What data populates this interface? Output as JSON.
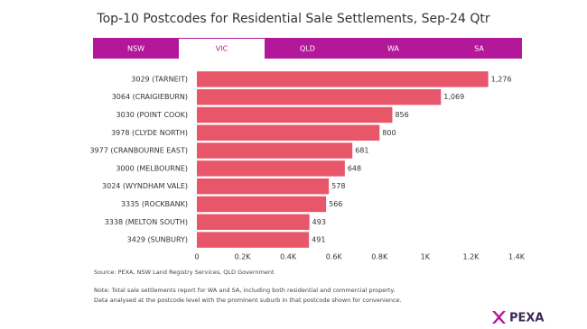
{
  "tabs": {
    "items": [
      "NSW",
      "VIC",
      "QLD",
      "WA",
      "SA"
    ],
    "active": 1
  },
  "chart_data": {
    "type": "bar",
    "orientation": "horizontal",
    "title": "Top-10 Postcodes for Residential Sale Settlements, Sep-24 Qtr",
    "categories": [
      "3029 (TARNEIT)",
      "3064 (CRAIGIEBURN)",
      "3030 (POINT COOK)",
      "3978 (CLYDE NORTH)",
      "3977 (CRANBOURNE EAST)",
      "3000 (MELBOURNE)",
      "3024 (WYNDHAM VALE)",
      "3335 (ROCKBANK)",
      "3338 (MELTON SOUTH)",
      "3429 (SUNBURY)"
    ],
    "values": [
      1276,
      1069,
      856,
      800,
      681,
      648,
      578,
      566,
      493,
      491
    ],
    "value_labels": [
      "1,276",
      "1,069",
      "856",
      "800",
      "681",
      "648",
      "578",
      "566",
      "493",
      "491"
    ],
    "color": "#e8566a",
    "xlim": [
      0,
      1400
    ],
    "xticks": [
      0,
      {
        "value": 200,
        "label": "0.2K"
      },
      {
        "value": 400,
        "label": "0.4K"
      },
      {
        "value": 600,
        "label": "0.6K"
      },
      {
        "value": 800,
        "label": "0.8K"
      },
      {
        "value": 1000,
        "label": "1K"
      },
      {
        "value": 1200,
        "label": "1.2K"
      },
      {
        "value": 1400,
        "label": "1.4K"
      }
    ],
    "grid": false
  },
  "source": "Source: PEXA, NSW Land Registry Services, QLD Government",
  "notes": [
    "Note: Total sale settlements report for WA and SA, including both residential and commercial property.",
    "Data analysed at the postcode level with the prominent suburb in that postcode shown for convenience."
  ],
  "logo": "PEXA"
}
